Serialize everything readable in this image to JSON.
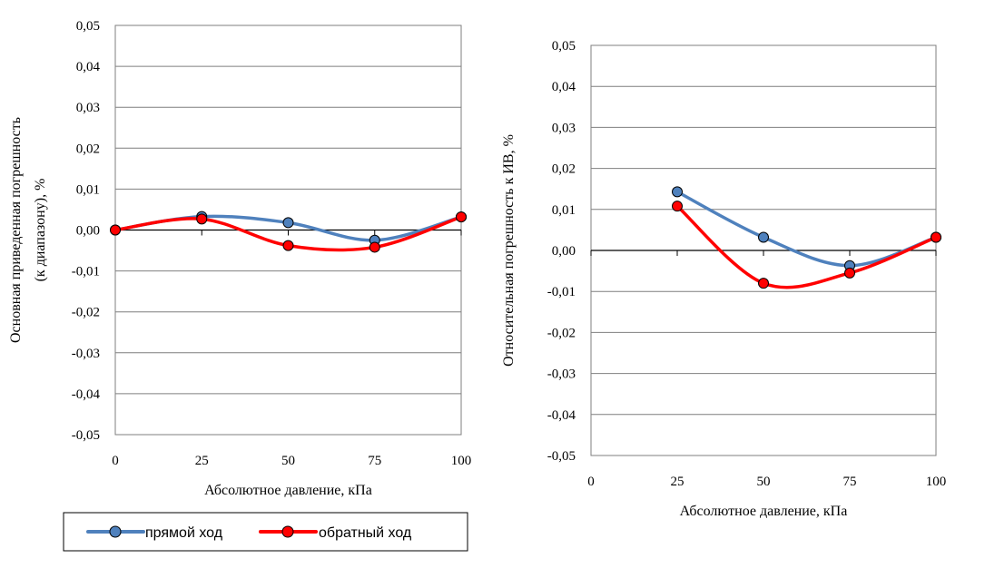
{
  "legend": {
    "items": [
      {
        "label": "прямой ход",
        "color": "#4f81bd",
        "marker": "#4f81bd"
      },
      {
        "label": "обратный ход",
        "color": "#ff0000",
        "marker": "#ff0000"
      }
    ]
  },
  "chart_data": [
    {
      "type": "line",
      "title": "",
      "xlabel": "Абсолютное давление,  кПа",
      "ylabel_line1": "Основная приведенная погрешность",
      "ylabel_line2": "(к диапазону), %",
      "xlim": [
        0,
        100
      ],
      "ylim": [
        -0.05,
        0.05
      ],
      "x_ticks": [
        "0",
        "25",
        "50",
        "75",
        "100"
      ],
      "y_ticks": [
        "0,05",
        "0,04",
        "0,03",
        "0,02",
        "0,01",
        "0,00",
        "-0,01",
        "-0,02",
        "-0,03",
        "-0,04",
        "-0,05"
      ],
      "grid": true,
      "x": [
        0,
        25,
        50,
        75,
        100
      ],
      "series": [
        {
          "name": "прямой ход",
          "color": "#4f81bd",
          "values": [
            0.0,
            0.0033,
            0.0018,
            -0.0025,
            0.0032
          ]
        },
        {
          "name": "обратный ход",
          "color": "#ff0000",
          "values": [
            0.0,
            0.0027,
            -0.0038,
            -0.0042,
            0.0032
          ]
        }
      ]
    },
    {
      "type": "line",
      "title": "",
      "xlabel": "Абсолютное давление,  кПа",
      "ylabel_line1": "Относительная  погрешность к ИВ, %",
      "ylabel_line2": "",
      "xlim": [
        0,
        100
      ],
      "ylim": [
        -0.05,
        0.05
      ],
      "x_ticks": [
        "0",
        "25",
        "50",
        "75",
        "100"
      ],
      "y_ticks": [
        "0,05",
        "0,04",
        "0,03",
        "0,02",
        "0,01",
        "0,00",
        "-0,01",
        "-0,02",
        "-0,03",
        "-0,04",
        "-0,05"
      ],
      "grid": true,
      "x": [
        25,
        50,
        75,
        100
      ],
      "series": [
        {
          "name": "прямой ход",
          "color": "#4f81bd",
          "values": [
            0.0143,
            0.0032,
            -0.0037,
            0.0032
          ]
        },
        {
          "name": "обратный ход",
          "color": "#ff0000",
          "values": [
            0.0108,
            -0.008,
            -0.0055,
            0.0032
          ]
        }
      ]
    }
  ]
}
